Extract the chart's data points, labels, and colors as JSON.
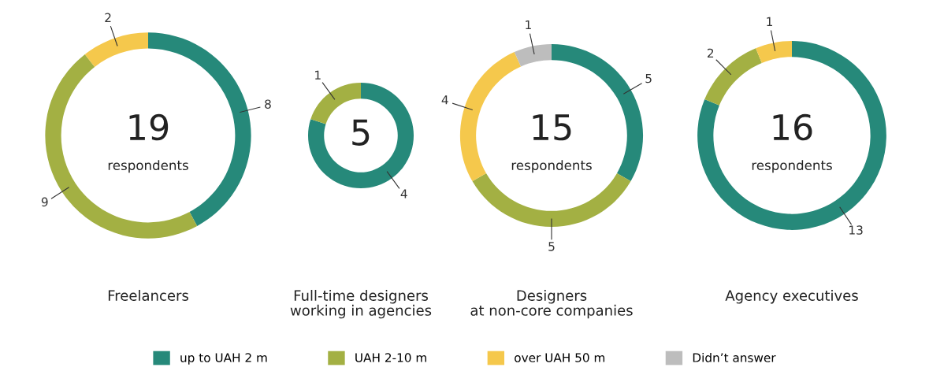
{
  "chart_data": [
    {
      "type": "donut",
      "title": "Freelancers",
      "categories": [
        null,
        null,
        null
      ],
      "values": [
        8,
        9,
        2
      ],
      "colors": [
        "#26897a",
        "#a3b043",
        "#f5c84c"
      ],
      "data_labels": true,
      "annotations": [
        "19",
        "respondents"
      ]
    },
    {
      "type": "donut",
      "title": "Full-time designers\nworking in agencies",
      "categories": [
        null,
        null
      ],
      "values": [
        4,
        1
      ],
      "colors": [
        "#26897a",
        "#a3b043"
      ],
      "data_labels": true,
      "annotations": [
        "5"
      ]
    },
    {
      "type": "donut",
      "title": "Designers\nat non-core companies",
      "categories": [
        "up to UAH 2 m",
        "UAH 2-10 m",
        "over UAH 50 m",
        "Didn’t answer"
      ],
      "values": [
        5,
        5,
        4,
        1
      ],
      "colors": [
        "#26897a",
        "#a3b043",
        "#f5c84c",
        "#bdbdbd"
      ],
      "data_labels": true,
      "legend": "bottom",
      "annotations": [
        "15",
        "respondents"
      ]
    },
    {
      "type": "donut",
      "title": "Agency executives",
      "categories": [
        null,
        null,
        null
      ],
      "values": [
        13,
        2,
        1
      ],
      "colors": [
        "#26897a",
        "#a3b043",
        "#f5c84c"
      ],
      "data_labels": true,
      "annotations": [
        "16",
        "respondents"
      ]
    }
  ]
}
